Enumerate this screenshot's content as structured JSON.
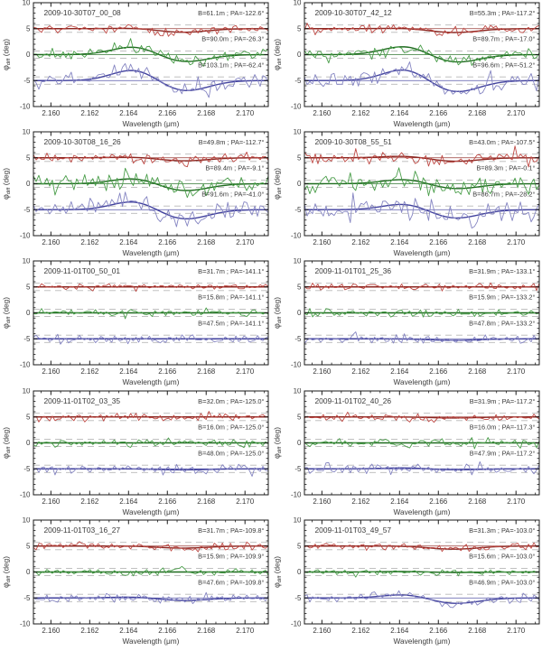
{
  "chart_data": {
    "type": "line",
    "layout": {
      "rows": 5,
      "cols": 2
    },
    "xlabel": "Wavelength (μm)",
    "ylabel_phi": "φ",
    "ylabel_sub": "diff",
    "ylabel_unit": " (deg)",
    "x_range": [
      2.1591,
      2.1712
    ],
    "y_range": [
      -10,
      10
    ],
    "x_ticks": [
      2.16,
      2.162,
      2.164,
      2.166,
      2.168,
      2.17
    ],
    "x_minor_step": 0.0005,
    "y_ticks": [
      -10,
      -5,
      0,
      5,
      10
    ],
    "y_minor_step": 1,
    "trace_offsets": [
      5,
      0,
      -5
    ],
    "band_halfwidth": 0.7,
    "feature_shape": {
      "bump_x": 2.16435,
      "bump_sigma": 0.00115,
      "dip_x": 2.1668,
      "dip_sigma": 0.00125
    },
    "colors": {
      "red": {
        "noisy": "#bf4a45",
        "model": "#8b2620"
      },
      "green": {
        "noisy": "#4a9e4a",
        "model": "#1e6b1e"
      },
      "blue": {
        "noisy": "#8585c2",
        "model": "#42429e"
      },
      "band_dash": "#b8b8b8",
      "axis": "#1a1a1a",
      "text": "#3a3a3a"
    },
    "panels": [
      {
        "title": "2009-10-30T07_00_08",
        "traces": [
          {
            "color": "red",
            "offset": 5,
            "label": "B=61.1m ; PA=-122.6°",
            "noise": 0.4,
            "bump": 0.1,
            "dip": 0.7,
            "seed": 101
          },
          {
            "color": "green",
            "offset": 0,
            "label": "B=90.0m ; PA=-26.3°",
            "noise": 0.55,
            "bump": 1.6,
            "dip": 1.45,
            "seed": 102
          },
          {
            "color": "blue",
            "offset": -5,
            "label": "B=103.1m ; PA=-62.4°",
            "noise": 0.75,
            "bump": 2.2,
            "dip": 2.1,
            "seed": 103
          }
        ]
      },
      {
        "title": "2009-10-30T07_42_12",
        "traces": [
          {
            "color": "red",
            "offset": 5,
            "label": "B=55.3m ; PA=-117.2°",
            "noise": 0.45,
            "bump": 0.1,
            "dip": 0.75,
            "seed": 104
          },
          {
            "color": "green",
            "offset": 0,
            "label": "B=89.7m ; PA=-17.0°",
            "noise": 0.6,
            "bump": 1.7,
            "dip": 1.55,
            "seed": 105
          },
          {
            "color": "blue",
            "offset": -5,
            "label": "B=96.6m ; PA=-51.2°",
            "noise": 0.85,
            "bump": 2.3,
            "dip": 2.3,
            "seed": 106
          }
        ]
      },
      {
        "title": "2009-10-30T08_16_26",
        "traces": [
          {
            "color": "red",
            "offset": 5,
            "label": "B=49.8m ; PA=-112.7°",
            "noise": 0.5,
            "bump": 0.15,
            "dip": 0.6,
            "seed": 107
          },
          {
            "color": "green",
            "offset": 0,
            "label": "B=89.4m ; PA=-9.1°",
            "noise": 0.85,
            "bump": 1.1,
            "dip": 1.4,
            "seed": 108
          },
          {
            "color": "blue",
            "offset": -5,
            "label": "B=91.6m ; PA=-41.0°",
            "noise": 1.05,
            "bump": 1.7,
            "dip": 1.9,
            "seed": 109
          }
        ]
      },
      {
        "title": "2009-10-30T08_55_51",
        "traces": [
          {
            "color": "red",
            "offset": 5,
            "label": "B=43.0m ; PA=-107.5°",
            "noise": 0.6,
            "bump": 0.35,
            "dip": 0.7,
            "seed": 110
          },
          {
            "color": "green",
            "offset": 0,
            "label": "B=89.3m ; PA=-0.1°",
            "noise": 1.05,
            "bump": 0.9,
            "dip": 1.0,
            "seed": 111
          },
          {
            "color": "blue",
            "offset": -5,
            "label": "B=86.7m ; PA=-28.2°",
            "noise": 1.25,
            "bump": 1.2,
            "dip": 1.7,
            "seed": 112
          }
        ]
      },
      {
        "title": "2009-11-01T00_50_01",
        "traces": [
          {
            "color": "red",
            "offset": 5,
            "label": "B=31.7m ; PA=-141.1°",
            "noise": 0.32,
            "bump": 0.0,
            "dip": 0.0,
            "seed": 113
          },
          {
            "color": "green",
            "offset": 0,
            "label": "B=15.8m ; PA=-141.1°",
            "noise": 0.35,
            "bump": 0.0,
            "dip": 0.0,
            "seed": 114
          },
          {
            "color": "blue",
            "offset": -5,
            "label": "B=47.5m ; PA=-141.1°",
            "noise": 0.4,
            "bump": 0.0,
            "dip": 0.0,
            "seed": 115
          }
        ]
      },
      {
        "title": "2009-11-01T01_25_36",
        "traces": [
          {
            "color": "red",
            "offset": 5,
            "label": "B=31.9m ; PA=-133.1°",
            "noise": 0.35,
            "bump": 0.0,
            "dip": 0.0,
            "seed": 116
          },
          {
            "color": "green",
            "offset": 0,
            "label": "B=15.9m ; PA=-133.2°",
            "noise": 0.38,
            "bump": 0.0,
            "dip": 0.0,
            "seed": 117
          },
          {
            "color": "blue",
            "offset": -5,
            "label": "B=47.8m ; PA=-133.2°",
            "noise": 0.45,
            "bump": 0.0,
            "dip": 0.3,
            "seed": 118
          }
        ]
      },
      {
        "title": "2009-11-01T02_03_35",
        "traces": [
          {
            "color": "red",
            "offset": 5,
            "label": "B=32.0m ; PA=-125.0°",
            "noise": 0.38,
            "bump": 0.0,
            "dip": 0.0,
            "seed": 119
          },
          {
            "color": "green",
            "offset": 0,
            "label": "B=16.0m ; PA=-125.0°",
            "noise": 0.4,
            "bump": 0.0,
            "dip": 0.0,
            "seed": 120
          },
          {
            "color": "blue",
            "offset": -5,
            "label": "B=48.0m ; PA=-125.0°",
            "noise": 0.48,
            "bump": 0.0,
            "dip": 0.2,
            "seed": 121
          }
        ]
      },
      {
        "title": "2009-11-01T02_40_26",
        "traces": [
          {
            "color": "red",
            "offset": 5,
            "label": "B=31.9m ; PA=-117.2°",
            "noise": 0.4,
            "bump": 0.0,
            "dip": 0.2,
            "seed": 122
          },
          {
            "color": "green",
            "offset": 0,
            "label": "B=16.0m ; PA=-117.3°",
            "noise": 0.45,
            "bump": 0.0,
            "dip": 0.0,
            "seed": 123
          },
          {
            "color": "blue",
            "offset": -5,
            "label": "B=47.9m ; PA=-117.2°",
            "noise": 0.5,
            "bump": 0.2,
            "dip": 0.2,
            "seed": 124
          }
        ]
      },
      {
        "title": "2009-11-01T03_16_27",
        "traces": [
          {
            "color": "red",
            "offset": 5,
            "label": "B=31.7m ; PA=-109.8°",
            "noise": 0.38,
            "bump": 0.0,
            "dip": 0.4,
            "seed": 125
          },
          {
            "color": "green",
            "offset": 0,
            "label": "B=15.9m ; PA=-109.9°",
            "noise": 0.35,
            "bump": 0.0,
            "dip": 0.0,
            "seed": 126
          },
          {
            "color": "blue",
            "offset": -5,
            "label": "B=47.6m ; PA=-109.8°",
            "noise": 0.45,
            "bump": 0.2,
            "dip": 0.5,
            "seed": 127
          }
        ]
      },
      {
        "title": "2009-11-01T03_49_57",
        "traces": [
          {
            "color": "red",
            "offset": 5,
            "label": "B=31.3m ; PA=-103.0°",
            "noise": 0.35,
            "bump": 0.0,
            "dip": 0.6,
            "seed": 128
          },
          {
            "color": "green",
            "offset": 0,
            "label": "B=15.6m ; PA=-103.0°",
            "noise": 0.3,
            "bump": 0.1,
            "dip": 0.1,
            "seed": 129
          },
          {
            "color": "blue",
            "offset": -5,
            "label": "B=46.9m ; PA=-103.0°",
            "noise": 0.4,
            "bump": 0.7,
            "dip": 1.1,
            "seed": 130
          }
        ]
      }
    ]
  }
}
